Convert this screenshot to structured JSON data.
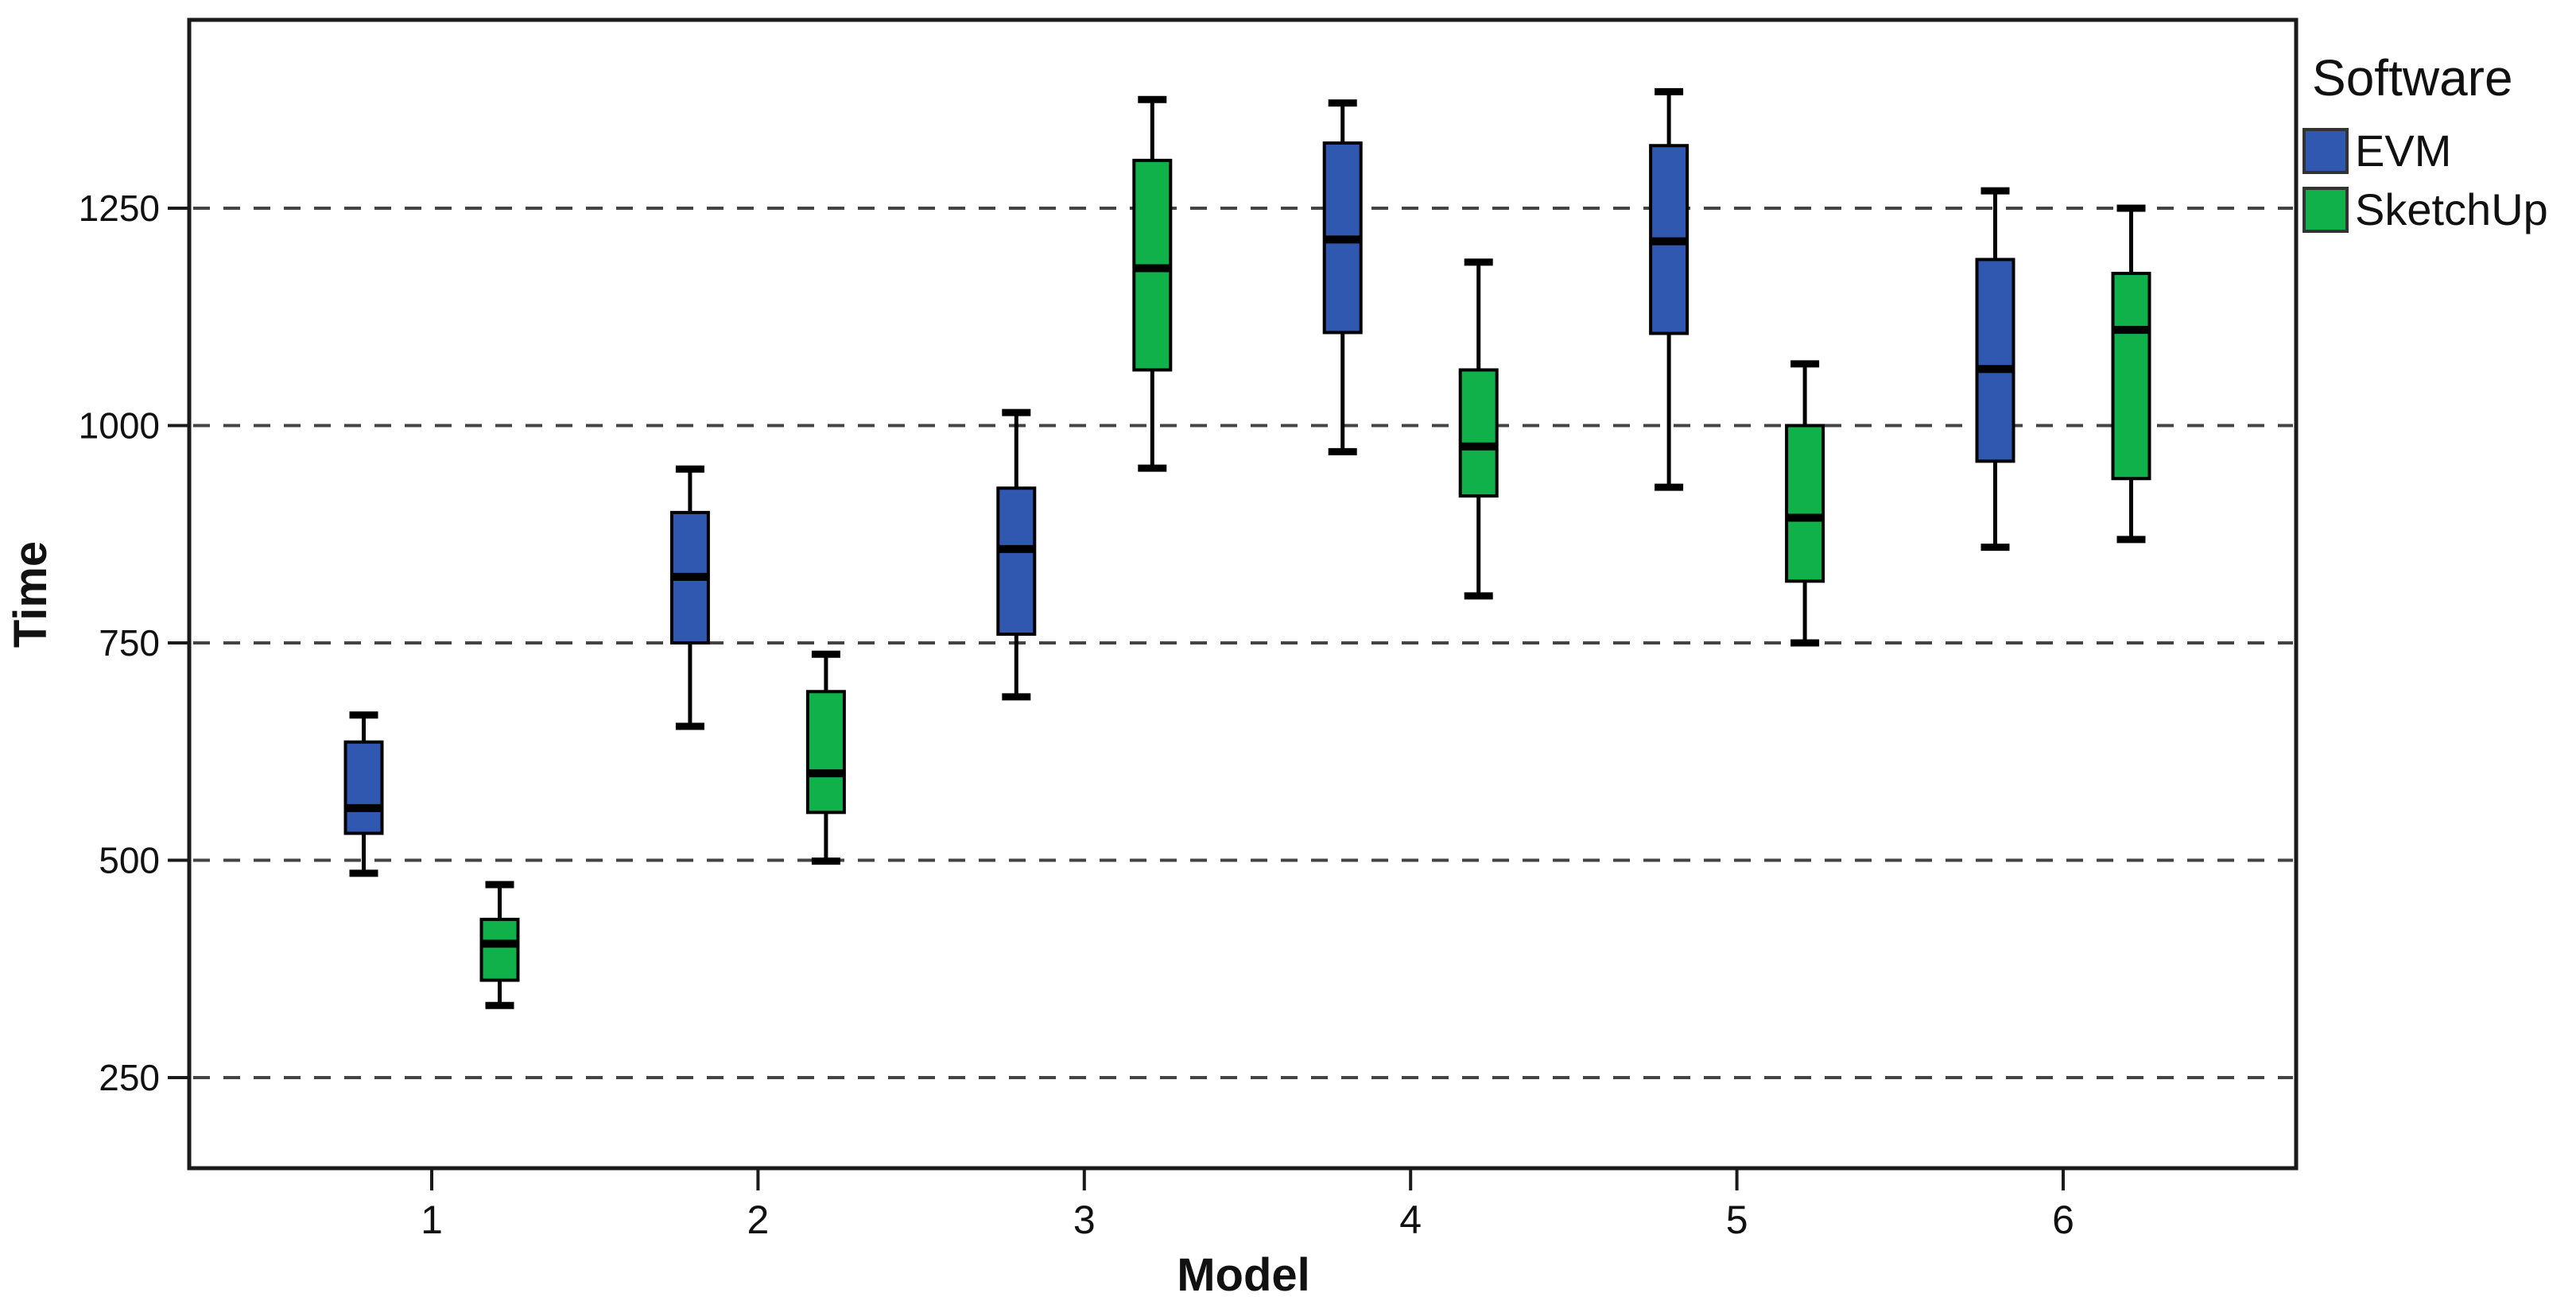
{
  "chart_data": {
    "type": "boxplot",
    "title": "",
    "xlabel": "Model",
    "ylabel": "Time",
    "categories": [
      "1",
      "2",
      "3",
      "4",
      "5",
      "6"
    ],
    "y_ticks": [
      250,
      500,
      750,
      1000,
      1250
    ],
    "ylim": [
      145,
      1465
    ],
    "grid": "horizontal-dashed",
    "legend": {
      "title": "Software",
      "position": "top-right-outside",
      "entries": [
        {
          "label": "EVM",
          "color": "#3058B0"
        },
        {
          "label": "SketchUp",
          "color": "#10B04B"
        }
      ]
    },
    "series": [
      {
        "name": "EVM",
        "color": "#3058B0",
        "boxes": [
          {
            "category": "1",
            "min": 485,
            "q1": 531,
            "median": 560,
            "q3": 636,
            "max": 667
          },
          {
            "category": "2",
            "min": 654,
            "q1": 750,
            "median": 826,
            "q3": 900,
            "max": 950
          },
          {
            "category": "3",
            "min": 688,
            "q1": 760,
            "median": 858,
            "q3": 928,
            "max": 1015
          },
          {
            "category": "4",
            "min": 970,
            "q1": 1107,
            "median": 1214,
            "q3": 1325,
            "max": 1371
          },
          {
            "category": "5",
            "min": 929,
            "q1": 1106,
            "median": 1212,
            "q3": 1322,
            "max": 1384
          },
          {
            "category": "6",
            "min": 860,
            "q1": 959,
            "median": 1065,
            "q3": 1191,
            "max": 1270
          }
        ]
      },
      {
        "name": "SketchUp",
        "color": "#10B04B",
        "boxes": [
          {
            "category": "1",
            "min": 333,
            "q1": 362,
            "median": 404,
            "q3": 432,
            "max": 472
          },
          {
            "category": "2",
            "min": 499,
            "q1": 555,
            "median": 600,
            "q3": 694,
            "max": 737
          },
          {
            "category": "3",
            "min": 951,
            "q1": 1064,
            "median": 1181,
            "q3": 1305,
            "max": 1375
          },
          {
            "category": "4",
            "min": 804,
            "q1": 919,
            "median": 976,
            "q3": 1064,
            "max": 1188
          },
          {
            "category": "5",
            "min": 750,
            "q1": 821,
            "median": 894,
            "q3": 1000,
            "max": 1071
          },
          {
            "category": "6",
            "min": 869,
            "q1": 939,
            "median": 1110,
            "q3": 1175,
            "max": 1250
          }
        ]
      }
    ]
  },
  "colors": {
    "background": "#ffffff",
    "frame": "#1a1a1a",
    "grid": "#444444",
    "tick": "#1a1a1a",
    "tick_text": "#262626",
    "box_outline": "#000000",
    "legend_swatch_border": "#333333"
  }
}
